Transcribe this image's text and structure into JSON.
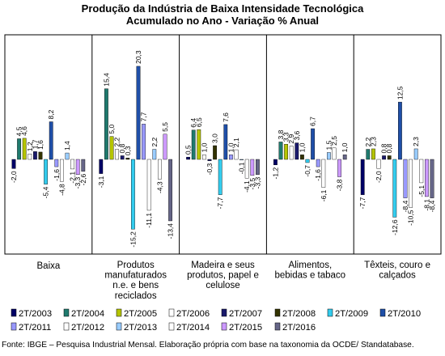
{
  "chart_data": {
    "type": "bar",
    "title": [
      "Produção da Indústria de Baixa Intensidade Tecnológica",
      "Acumulado no Ano - Variação % Anual"
    ],
    "categories": [
      [
        "Baixa"
      ],
      [
        "Produtos",
        "manufaturados",
        "n.e. e bens",
        "reciclados"
      ],
      [
        "Madeira e seus",
        "produtos, papel e",
        "celulose"
      ],
      [
        "Alimentos,",
        "bebidas e tabaco"
      ],
      [
        "Têxteis, couro e",
        "calçados"
      ]
    ],
    "series": [
      {
        "name": "2T/2003",
        "color": "#000066",
        "values": [
          -2.0,
          -3.1,
          0.5,
          -1.2,
          -7.7
        ]
      },
      {
        "name": "2T/2004",
        "color": "#1f7a6e",
        "values": [
          4.5,
          15.4,
          6.4,
          3.8,
          2.2
        ]
      },
      {
        "name": "2T/2005",
        "color": "#b5c400",
        "values": [
          4.6,
          5.0,
          6.5,
          3.3,
          2.3
        ]
      },
      {
        "name": "2T/2006",
        "color": "#ffffff",
        "values": [
          1.2,
          2.2,
          1.0,
          2.9,
          -2.0
        ]
      },
      {
        "name": "2T/2007",
        "color": "#1a1a6b",
        "values": [
          1.7,
          0.8,
          -0.3,
          3.6,
          0.8
        ]
      },
      {
        "name": "2T/2008",
        "color": "#333300",
        "values": [
          1.6,
          0.3,
          3.0,
          1.0,
          0.8
        ]
      },
      {
        "name": "2T/2009",
        "color": "#33ccee",
        "values": [
          -5.4,
          -15.2,
          -7.7,
          -0.7,
          -12.6
        ]
      },
      {
        "name": "2T/2010",
        "color": "#1f4fa8",
        "values": [
          8.2,
          20.3,
          7.6,
          6.7,
          12.5
        ]
      },
      {
        "name": "2T/2011",
        "color": "#9999ff",
        "values": [
          -1.6,
          7.7,
          1.0,
          -1.6,
          -8.4
        ]
      },
      {
        "name": "2T/2012",
        "color": "#ffffff",
        "values": [
          -4.8,
          -11.1,
          2.1,
          -6.1,
          -10.5
        ]
      },
      {
        "name": "2T/2013",
        "color": "#99ccff",
        "values": [
          1.4,
          2.2,
          -0.1,
          1.5,
          2.3
        ]
      },
      {
        "name": "2T/2014",
        "color": "#ffffff",
        "values": [
          -2.1,
          -4.3,
          -4.1,
          2.5,
          -5.1
        ]
      },
      {
        "name": "2T/2015",
        "color": "#cc99ff",
        "values": [
          -3.3,
          5.5,
          -3.5,
          -3.8,
          -8.1
        ]
      },
      {
        "name": "2T/2016",
        "color": "#666688",
        "values": [
          -2.6,
          -13.4,
          -3.3,
          1.0,
          -8.4
        ]
      }
    ],
    "bar_labels": [
      [
        "-2,0",
        "4,5",
        "4,6",
        "1,2",
        "1,7",
        "1,6",
        "-5,4",
        "8,2",
        "-1,6",
        "-4,8",
        "1,4",
        "-2,1",
        "-3,3",
        "-2,6"
      ],
      [
        "-3,1",
        "15,4",
        "5,0",
        "2,2",
        "0,8",
        "0,3",
        "-15,2",
        "20,3",
        "7,7",
        "-11,1",
        "2,2",
        "-4,3",
        "5,5",
        "-13,4"
      ],
      [
        "0,5",
        "6,4",
        "6,5",
        "1,0",
        "-0,3",
        "3,0",
        "-7,7",
        "7,6",
        "1,0",
        "2,1",
        "-0,1",
        "-4,1",
        "-3,5",
        "-3,3"
      ],
      [
        "-1,2",
        "3,8",
        "3,3",
        "2,9",
        "3,6",
        "1,0",
        "-0,7",
        "6,7",
        "-1,6",
        "-6,1",
        "1,5",
        "2,5",
        "-3,8",
        "1,0"
      ],
      [
        "-7,7",
        "2,2",
        "2,3",
        "-2,0",
        "0,8",
        "0,8",
        "-12,6",
        "12,5",
        "-8,4",
        "-10,5",
        "2,3",
        "-5,1",
        "-8,1",
        "-8,4"
      ]
    ],
    "ylim": [
      -20,
      25
    ],
    "grid": false,
    "legend_position": "bottom"
  },
  "source_note": "Fonte: IBGE – Pesquisa Industrial Mensal. Elaboração própria com base na taxonomia da OCDE/ Standatabase."
}
